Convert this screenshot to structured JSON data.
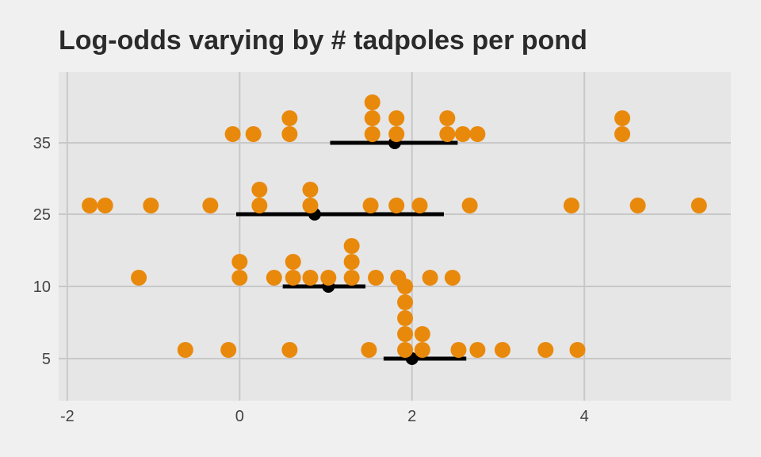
{
  "chart_data": {
    "type": "scatter",
    "title": "Log-odds varying by # tadpoles per pond",
    "xlabel": "",
    "ylabel": "",
    "xlim": [
      -2.1,
      5.7
    ],
    "x_ticks": [
      -2,
      0,
      2,
      4
    ],
    "x_tick_labels": [
      "-2",
      "0",
      "2",
      "4"
    ],
    "y_categories": [
      "5",
      "10",
      "25",
      "35"
    ],
    "grid": true,
    "legend": "none",
    "colors": {
      "points": "#E8890C",
      "estimate": "#000000",
      "panel": "#e6e6e6",
      "grid": "#c8c8c8",
      "background": "#f0f0f0"
    },
    "groups": [
      {
        "category": "5",
        "points": [
          -0.63,
          -0.13,
          0.58,
          1.5,
          1.92,
          1.92,
          1.92,
          1.92,
          1.92,
          2.12,
          2.12,
          2.54,
          2.76,
          3.05,
          3.55,
          3.92
        ],
        "estimate": {
          "mean": 2.0,
          "lower": 1.67,
          "upper": 2.63
        }
      },
      {
        "category": "10",
        "points": [
          -1.17,
          0.0,
          0.0,
          0.4,
          0.62,
          0.62,
          0.82,
          1.03,
          1.3,
          1.3,
          1.3,
          1.58,
          1.84,
          2.21,
          2.47
        ],
        "estimate": {
          "mean": 1.03,
          "lower": 0.5,
          "upper": 1.46
        }
      },
      {
        "category": "25",
        "points": [
          -1.74,
          -1.56,
          -1.03,
          -0.34,
          0.23,
          0.23,
          0.82,
          0.82,
          1.52,
          1.82,
          2.09,
          2.67,
          3.85,
          4.62,
          5.33
        ],
        "estimate": {
          "mean": 0.87,
          "lower": -0.04,
          "upper": 2.37
        }
      },
      {
        "category": "35",
        "points": [
          -0.08,
          0.16,
          0.58,
          0.58,
          1.54,
          1.54,
          1.54,
          1.82,
          1.82,
          2.41,
          2.41,
          2.59,
          2.76,
          4.44,
          4.44
        ],
        "estimate": {
          "mean": 1.8,
          "lower": 1.05,
          "upper": 2.53
        }
      }
    ]
  }
}
